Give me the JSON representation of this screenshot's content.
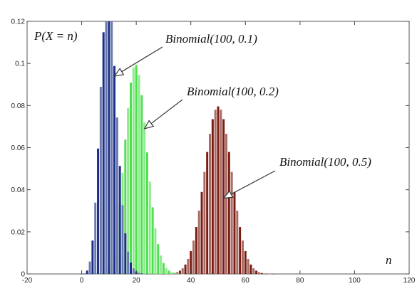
{
  "chart_data": {
    "type": "bar",
    "title": "",
    "xlabel": "n",
    "ylabel": "P(X = n)",
    "xlim": [
      -20,
      120
    ],
    "ylim": [
      0,
      0.12
    ],
    "x_ticks": [
      "-20",
      "0",
      "20",
      "40",
      "60",
      "80",
      "100",
      "120"
    ],
    "y_ticks": [
      "0",
      "0.02",
      "0.04",
      "0.06",
      "0.08",
      "0.1",
      "0.12"
    ],
    "grid": false,
    "series": [
      {
        "name": "Binomial(100, 0.1)",
        "n": 100,
        "p": 0.1,
        "color": "#1b2f86"
      },
      {
        "name": "Binomial(100, 0.2)",
        "n": 100,
        "p": 0.2,
        "color": "#4fe04f"
      },
      {
        "name": "Binomial(100, 0.5)",
        "n": 100,
        "p": 0.5,
        "color": "#7a1c12"
      }
    ],
    "annotations": [
      {
        "text": "Binomial(100, 0.1)",
        "points_to": [
          12,
          0.094
        ]
      },
      {
        "text": "Binomial(100, 0.2)",
        "points_to": [
          23,
          0.069
        ]
      },
      {
        "text": "Binomial(100, 0.5)",
        "points_to": [
          52,
          0.036
        ]
      }
    ]
  }
}
